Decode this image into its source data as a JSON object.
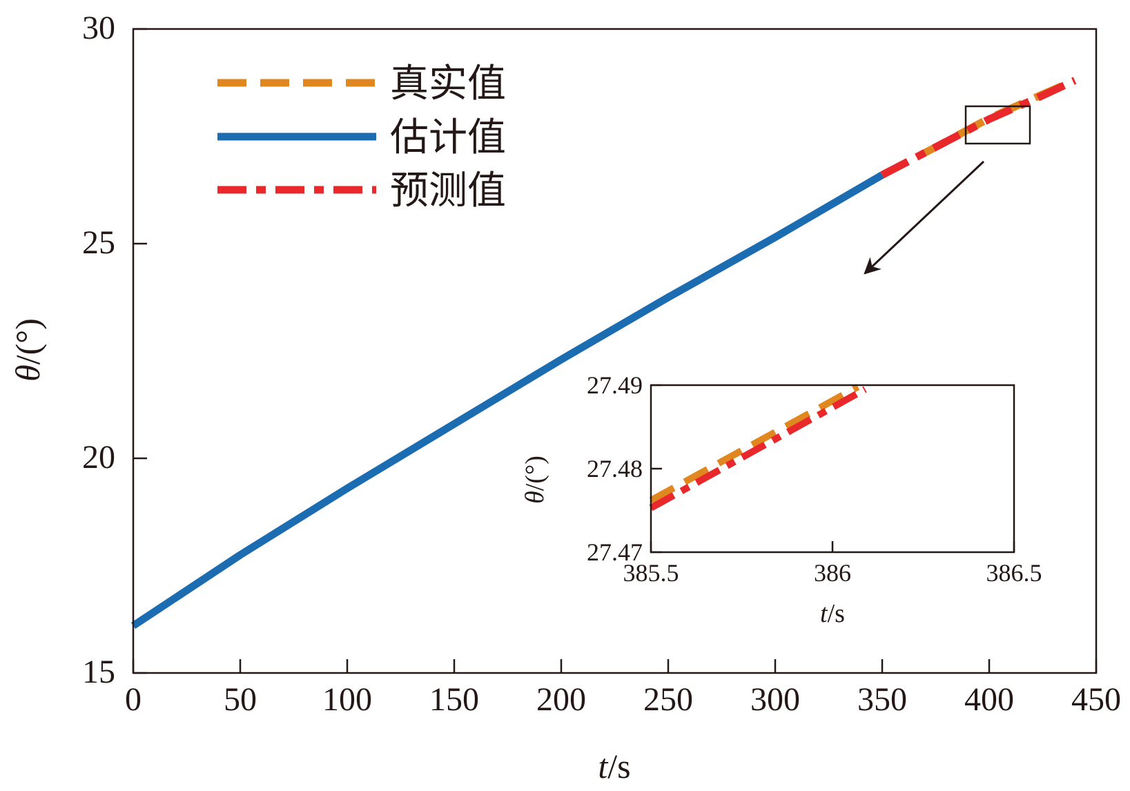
{
  "colors": {
    "true": "#E0881F",
    "estimated": "#1B6CB0",
    "predicted": "#E8282B",
    "axis": "#231815"
  },
  "legend": {
    "true_label": "真实值",
    "estimated_label": "估计值",
    "predicted_label": "预测值"
  },
  "chart_data": [
    {
      "type": "line",
      "xlabel_italic": "t",
      "xlabel_unit": "/s",
      "ylabel_italic": "θ",
      "ylabel_unit": "/(°)",
      "xlim": [
        0,
        450
      ],
      "ylim": [
        15,
        30
      ],
      "xticks": [
        0,
        50,
        100,
        150,
        200,
        250,
        300,
        350,
        400,
        450
      ],
      "yticks": [
        15,
        20,
        25,
        30
      ],
      "grid": false,
      "legend_position": "top-left",
      "series": [
        {
          "name": "估计值",
          "style": "solid",
          "x": [
            0,
            50,
            100,
            150,
            200,
            250,
            300,
            350
          ],
          "y": [
            16.1,
            17.75,
            19.3,
            20.8,
            22.3,
            23.75,
            25.15,
            26.6
          ]
        },
        {
          "name": "真实值",
          "style": "dashed",
          "x": [
            350,
            375,
            400,
            425,
            440
          ],
          "y": [
            26.6,
            27.25,
            27.92,
            28.48,
            28.8
          ]
        },
        {
          "name": "预测值",
          "style": "dashdot",
          "x": [
            350,
            375,
            400,
            425,
            440
          ],
          "y": [
            26.6,
            27.25,
            27.9,
            28.45,
            28.8
          ]
        }
      ]
    },
    {
      "type": "line",
      "inset": true,
      "xlabel_italic": "t",
      "xlabel_unit": "/s",
      "ylabel_italic": "θ",
      "ylabel_unit": "/(°)",
      "xlim": [
        385.5,
        386.5
      ],
      "ylim": [
        27.47,
        27.49
      ],
      "xticks": [
        385.5,
        386,
        386.5
      ],
      "xtick_labels": [
        "385.5",
        "386",
        "386.5"
      ],
      "yticks": [
        27.47,
        27.48,
        27.49
      ],
      "ytick_labels": [
        "27.47",
        "27.48",
        "27.49"
      ],
      "grid": false,
      "series": [
        {
          "name": "真实值",
          "style": "dashed",
          "x": [
            385.5,
            386.07
          ],
          "y": [
            27.4762,
            27.4898
          ]
        },
        {
          "name": "预测值",
          "style": "dashdot",
          "x": [
            385.5,
            386.09
          ],
          "y": [
            27.4753,
            27.4895
          ]
        }
      ]
    }
  ]
}
